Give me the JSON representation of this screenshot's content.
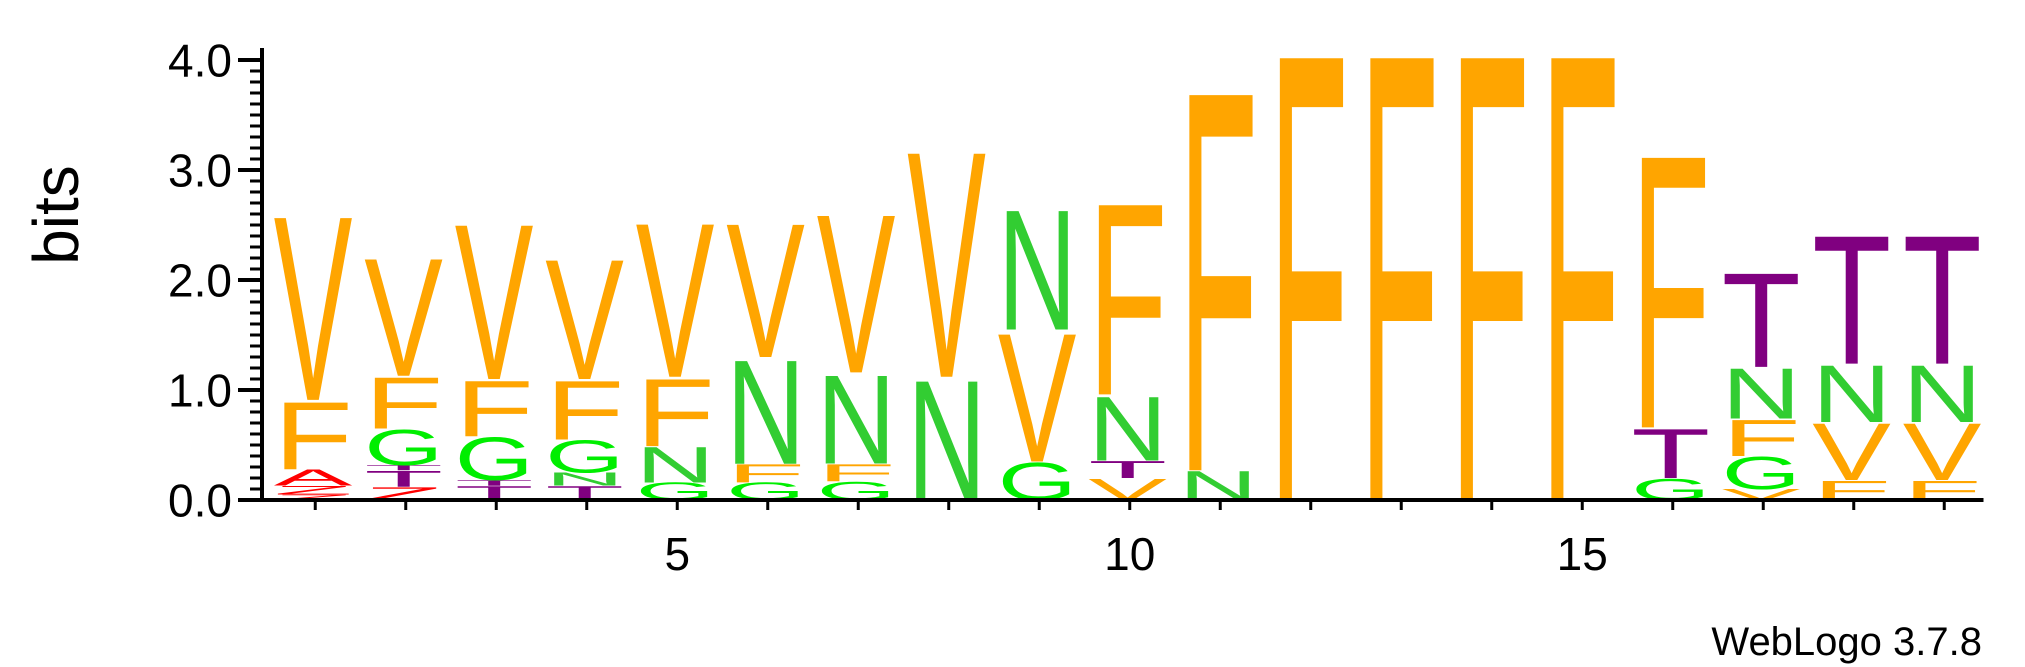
{
  "chart_data": {
    "type": "sequence-logo",
    "ylabel": "bits",
    "ylim": [
      0,
      4.0
    ],
    "y_ticks": [
      "0.0",
      "1.0",
      "2.0",
      "3.0",
      "4.0"
    ],
    "y_tick_values": [
      0,
      1,
      2,
      3,
      4
    ],
    "x_ticks": [
      "5",
      "10",
      "15"
    ],
    "x_tick_positions": [
      5,
      10,
      15
    ],
    "positions": 19,
    "colors": {
      "V": "#ffa500",
      "F": "#ffa500",
      "N": "#32cd32",
      "G": "#00ee00",
      "T": "#800080",
      "A": "#ff0000",
      "Z": "#ff0000"
    },
    "stacks": [
      [
        {
          "letter": "Z",
          "height": 0.05
        },
        {
          "letter": "Z",
          "height": 0.08
        },
        {
          "letter": "A",
          "height": 0.15
        },
        {
          "letter": "F",
          "height": 0.63
        },
        {
          "letter": "V",
          "height": 1.72
        }
      ],
      [
        {
          "letter": "Z",
          "height": 0.12
        },
        {
          "letter": "T",
          "height": 0.15
        },
        {
          "letter": "T",
          "height": 0.05
        },
        {
          "letter": "G",
          "height": 0.33
        },
        {
          "letter": "F",
          "height": 0.48
        },
        {
          "letter": "V",
          "height": 1.1
        }
      ],
      [
        {
          "letter": "T",
          "height": 0.13
        },
        {
          "letter": "T",
          "height": 0.05
        },
        {
          "letter": "G",
          "height": 0.4
        },
        {
          "letter": "F",
          "height": 0.52
        },
        {
          "letter": "V",
          "height": 1.45
        }
      ],
      [
        {
          "letter": "T",
          "height": 0.13
        },
        {
          "letter": "N",
          "height": 0.12
        },
        {
          "letter": "G",
          "height": 0.3
        },
        {
          "letter": "F",
          "height": 0.55
        },
        {
          "letter": "V",
          "height": 1.12
        }
      ],
      [
        {
          "letter": "G",
          "height": 0.16
        },
        {
          "letter": "N",
          "height": 0.33
        },
        {
          "letter": "F",
          "height": 0.63
        },
        {
          "letter": "V",
          "height": 1.44
        }
      ],
      [
        {
          "letter": "G",
          "height": 0.16
        },
        {
          "letter": "F",
          "height": 0.17
        },
        {
          "letter": "N",
          "height": 0.97
        },
        {
          "letter": "V",
          "height": 1.25
        }
      ],
      [
        {
          "letter": "G",
          "height": 0.17
        },
        {
          "letter": "F",
          "height": 0.16
        },
        {
          "letter": "N",
          "height": 0.83
        },
        {
          "letter": "V",
          "height": 1.48
        }
      ],
      [
        {
          "letter": "N",
          "height": 1.12
        },
        {
          "letter": "V",
          "height": 2.11
        }
      ],
      [
        {
          "letter": "G",
          "height": 0.35
        },
        {
          "letter": "V",
          "height": 1.2
        },
        {
          "letter": "N",
          "height": 1.12
        }
      ],
      [
        {
          "letter": "V",
          "height": 0.2
        },
        {
          "letter": "T",
          "height": 0.16
        },
        {
          "letter": "N",
          "height": 0.6
        },
        {
          "letter": "F",
          "height": 1.79
        }
      ],
      [
        {
          "letter": "N",
          "height": 0.27
        },
        {
          "letter": "F",
          "height": 3.55
        }
      ],
      [
        {
          "letter": "F",
          "height": 4.18
        }
      ],
      [
        {
          "letter": "F",
          "height": 4.18
        }
      ],
      [
        {
          "letter": "F",
          "height": 4.18
        }
      ],
      [
        {
          "letter": "F",
          "height": 4.18
        }
      ],
      [
        {
          "letter": "G",
          "height": 0.2
        },
        {
          "letter": "T",
          "height": 0.46
        },
        {
          "letter": "F",
          "height": 2.55
        }
      ],
      [
        {
          "letter": "V",
          "height": 0.1
        },
        {
          "letter": "G",
          "height": 0.3
        },
        {
          "letter": "F",
          "height": 0.34
        },
        {
          "letter": "N",
          "height": 0.47
        },
        {
          "letter": "T",
          "height": 0.88
        }
      ],
      [
        {
          "letter": "F",
          "height": 0.18
        },
        {
          "letter": "V",
          "height": 0.53
        },
        {
          "letter": "N",
          "height": 0.53
        },
        {
          "letter": "T",
          "height": 1.2
        }
      ],
      [
        {
          "letter": "F",
          "height": 0.18
        },
        {
          "letter": "V",
          "height": 0.53
        },
        {
          "letter": "N",
          "height": 0.53
        },
        {
          "letter": "T",
          "height": 1.2
        }
      ]
    ]
  },
  "footer": {
    "credit": "WebLogo 3.7.8"
  }
}
